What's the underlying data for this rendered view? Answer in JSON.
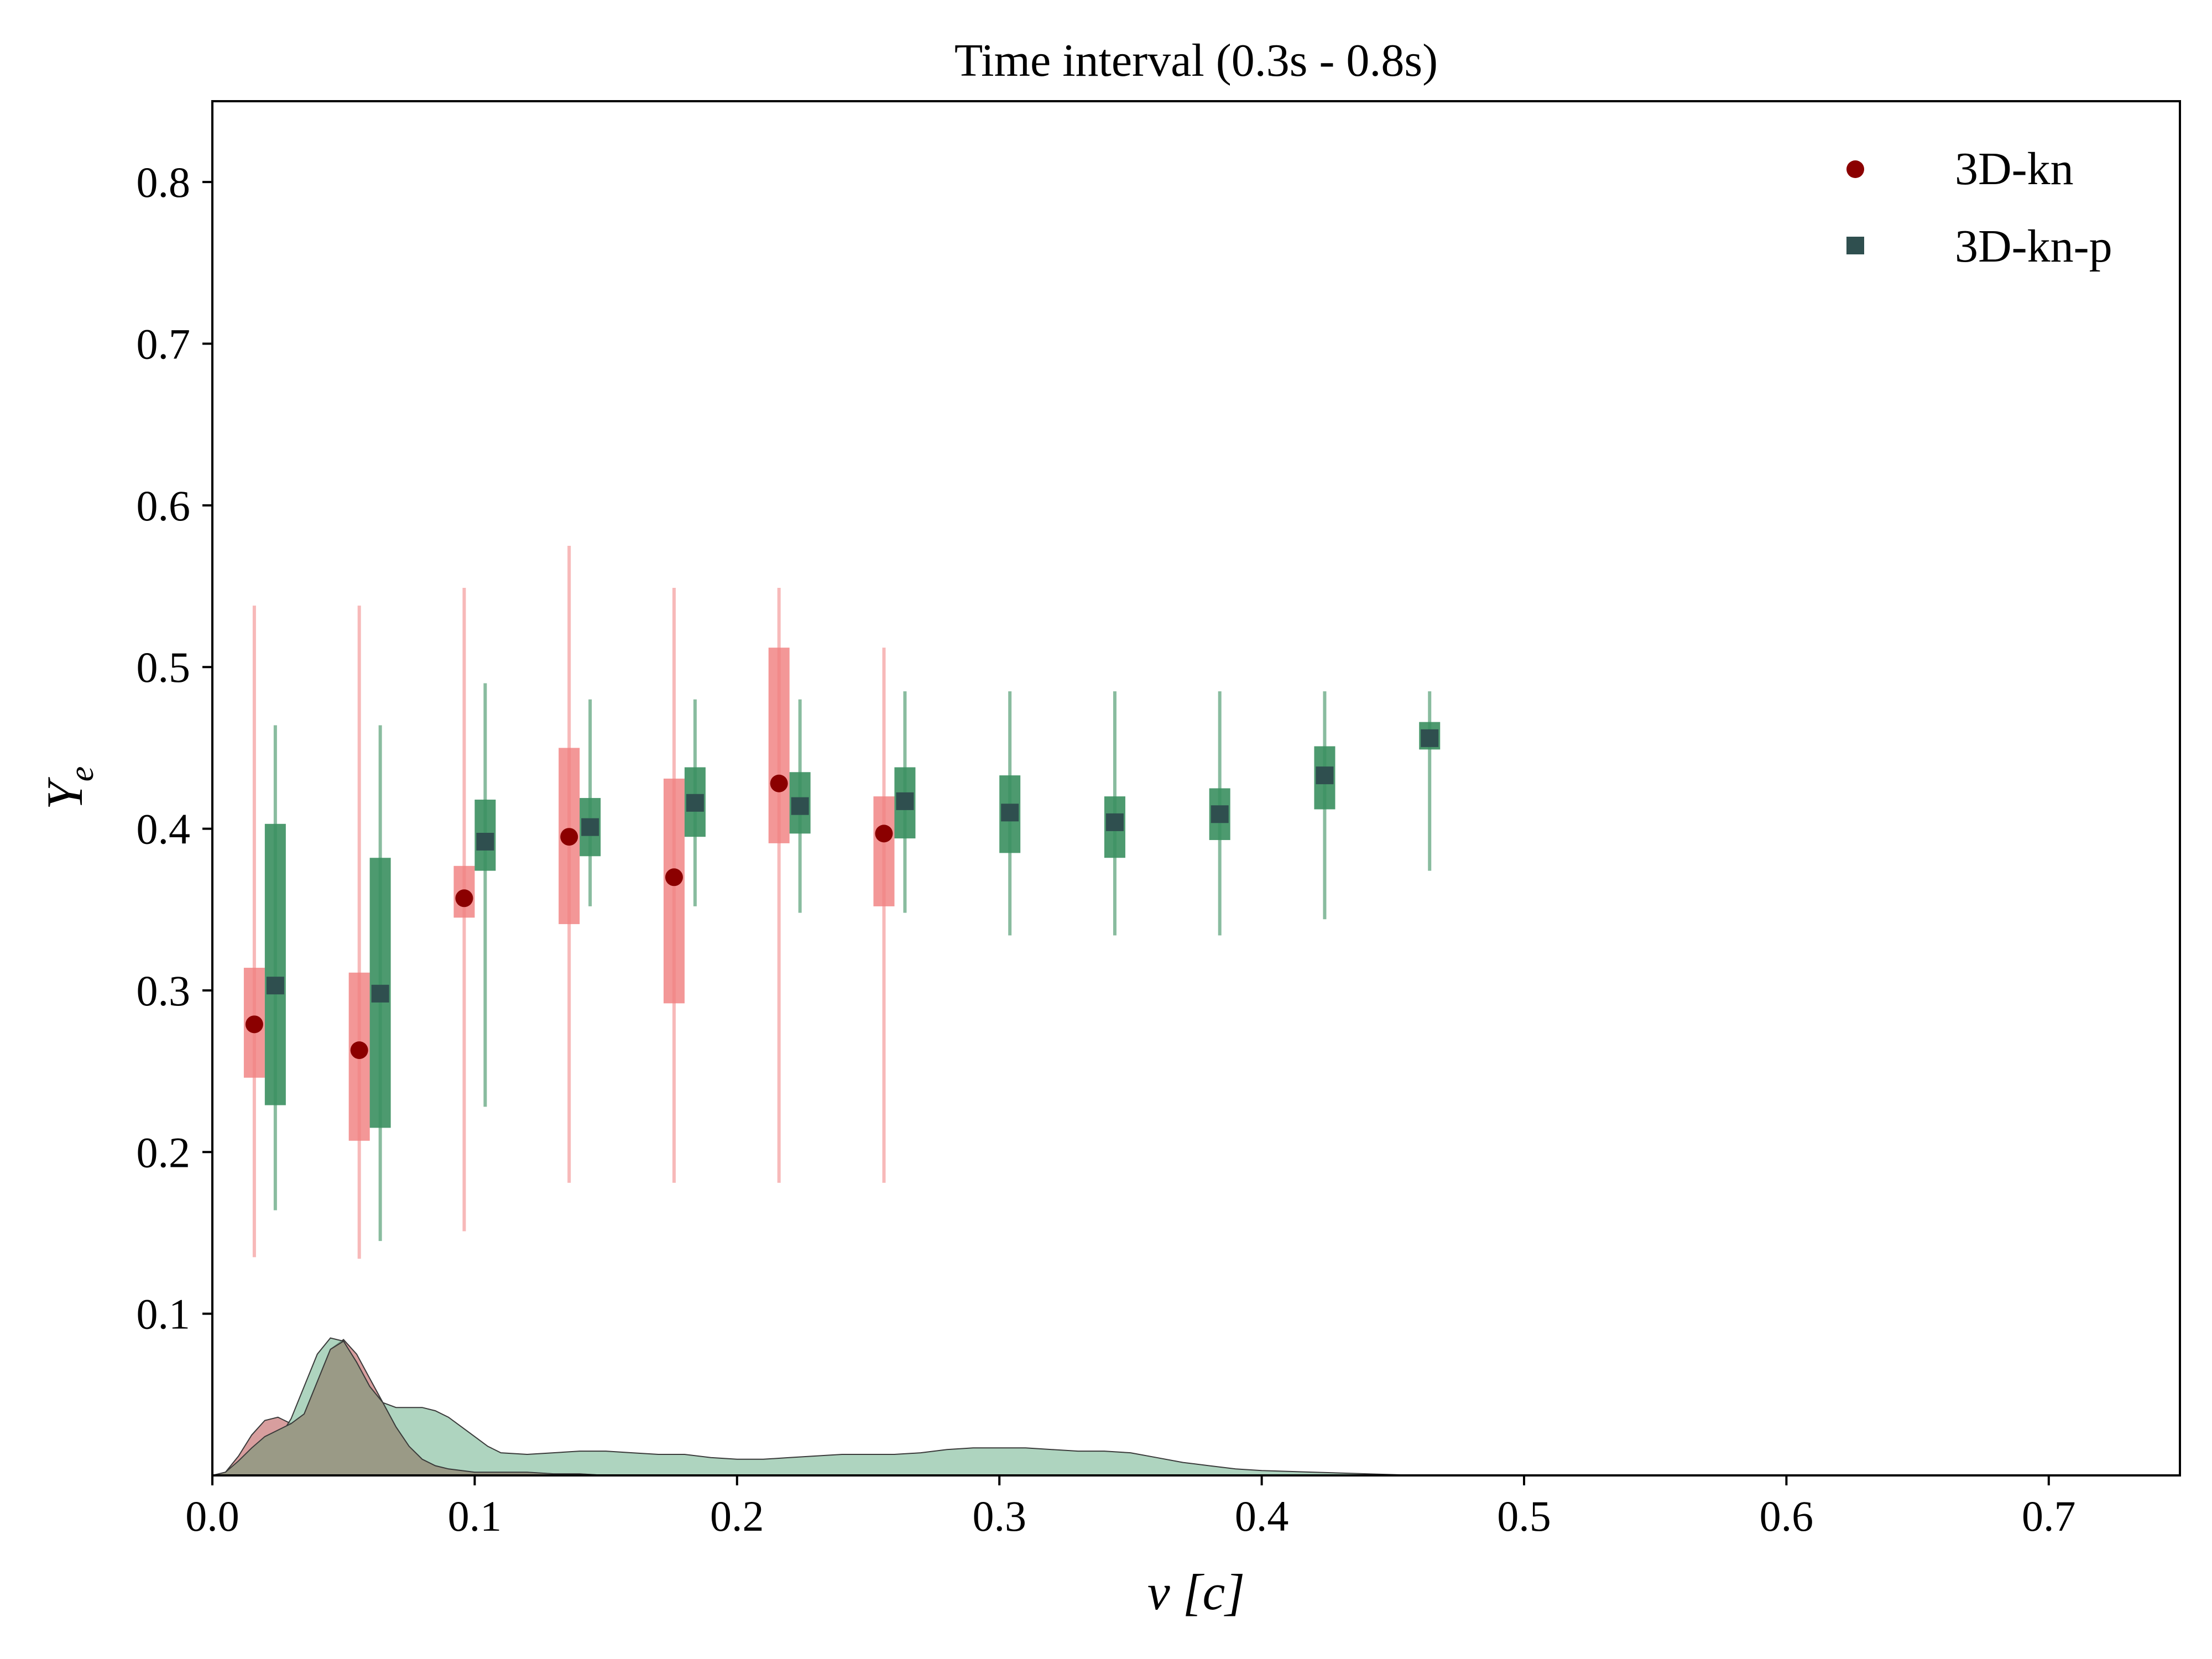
{
  "chart_data": {
    "type": "scatter",
    "title": "Time interval (0.3s - 0.8s)",
    "xlabel": "v [c]",
    "ylabel_main": "Y",
    "ylabel_sub": "e",
    "xlim": [
      0.0,
      0.75
    ],
    "ylim": [
      0.0,
      0.85
    ],
    "x_ticks": [
      "0.0",
      "0.1",
      "0.2",
      "0.3",
      "0.4",
      "0.5",
      "0.6",
      "0.7"
    ],
    "x_tick_values": [
      0.0,
      0.1,
      0.2,
      0.3,
      0.4,
      0.5,
      0.6,
      0.7
    ],
    "y_ticks": [
      "0.1",
      "0.2",
      "0.3",
      "0.4",
      "0.5",
      "0.6",
      "0.7",
      "0.8"
    ],
    "y_tick_values": [
      0.1,
      0.2,
      0.3,
      0.4,
      0.5,
      0.6,
      0.7,
      0.8
    ],
    "legend_position": "top-right",
    "grid": false,
    "series": [
      {
        "name": "3D-kn",
        "marker": "circle",
        "marker_color": "#8b0000",
        "box_color": "#f08080",
        "points": [
          {
            "x": 0.016,
            "y": 0.279,
            "q1": 0.246,
            "q3": 0.314,
            "min": 0.135,
            "max": 0.538
          },
          {
            "x": 0.056,
            "y": 0.263,
            "q1": 0.207,
            "q3": 0.311,
            "min": 0.134,
            "max": 0.538
          },
          {
            "x": 0.096,
            "y": 0.357,
            "q1": 0.345,
            "q3": 0.377,
            "min": 0.151,
            "max": 0.549
          },
          {
            "x": 0.136,
            "y": 0.395,
            "q1": 0.341,
            "q3": 0.45,
            "min": 0.181,
            "max": 0.575
          },
          {
            "x": 0.176,
            "y": 0.37,
            "q1": 0.292,
            "q3": 0.431,
            "min": 0.181,
            "max": 0.549
          },
          {
            "x": 0.216,
            "y": 0.428,
            "q1": 0.391,
            "q3": 0.512,
            "min": 0.181,
            "max": 0.549
          },
          {
            "x": 0.256,
            "y": 0.397,
            "q1": 0.352,
            "q3": 0.42,
            "min": 0.181,
            "max": 0.512
          }
        ]
      },
      {
        "name": "3D-kn-p",
        "marker": "square",
        "marker_color": "#2f4f4f",
        "box_color": "#3a8f5f",
        "points": [
          {
            "x": 0.024,
            "y": 0.303,
            "q1": 0.229,
            "q3": 0.403,
            "min": 0.164,
            "max": 0.464
          },
          {
            "x": 0.064,
            "y": 0.298,
            "q1": 0.215,
            "q3": 0.382,
            "min": 0.145,
            "max": 0.464
          },
          {
            "x": 0.104,
            "y": 0.392,
            "q1": 0.374,
            "q3": 0.418,
            "min": 0.228,
            "max": 0.49
          },
          {
            "x": 0.144,
            "y": 0.401,
            "q1": 0.383,
            "q3": 0.419,
            "min": 0.352,
            "max": 0.48
          },
          {
            "x": 0.184,
            "y": 0.416,
            "q1": 0.395,
            "q3": 0.438,
            "min": 0.352,
            "max": 0.48
          },
          {
            "x": 0.224,
            "y": 0.414,
            "q1": 0.397,
            "q3": 0.435,
            "min": 0.348,
            "max": 0.48
          },
          {
            "x": 0.264,
            "y": 0.417,
            "q1": 0.394,
            "q3": 0.438,
            "min": 0.348,
            "max": 0.485
          },
          {
            "x": 0.304,
            "y": 0.41,
            "q1": 0.385,
            "q3": 0.433,
            "min": 0.334,
            "max": 0.485
          },
          {
            "x": 0.344,
            "y": 0.404,
            "q1": 0.382,
            "q3": 0.42,
            "min": 0.334,
            "max": 0.485
          },
          {
            "x": 0.384,
            "y": 0.409,
            "q1": 0.393,
            "q3": 0.425,
            "min": 0.334,
            "max": 0.485
          },
          {
            "x": 0.424,
            "y": 0.433,
            "q1": 0.412,
            "q3": 0.451,
            "min": 0.344,
            "max": 0.485
          },
          {
            "x": 0.464,
            "y": 0.456,
            "q1": 0.449,
            "q3": 0.466,
            "min": 0.374,
            "max": 0.485
          }
        ]
      }
    ],
    "density": [
      {
        "name": "3D-kn",
        "color": "#c97878",
        "x": [
          0.0,
          0.005,
          0.01,
          0.015,
          0.02,
          0.025,
          0.03,
          0.035,
          0.04,
          0.045,
          0.05,
          0.055,
          0.06,
          0.065,
          0.07,
          0.075,
          0.08,
          0.085,
          0.09,
          0.095,
          0.1,
          0.11,
          0.12,
          0.13,
          0.14,
          0.15
        ],
        "y": [
          0.0,
          0.002,
          0.012,
          0.025,
          0.034,
          0.036,
          0.032,
          0.038,
          0.058,
          0.078,
          0.084,
          0.075,
          0.06,
          0.045,
          0.03,
          0.018,
          0.01,
          0.006,
          0.004,
          0.003,
          0.002,
          0.002,
          0.002,
          0.001,
          0.001,
          0.0
        ]
      },
      {
        "name": "3D-kn-p",
        "color": "#8fc4a6",
        "x": [
          0.0,
          0.01,
          0.02,
          0.025,
          0.03,
          0.035,
          0.04,
          0.045,
          0.05,
          0.055,
          0.06,
          0.065,
          0.07,
          0.075,
          0.08,
          0.085,
          0.09,
          0.095,
          0.1,
          0.105,
          0.11,
          0.12,
          0.13,
          0.14,
          0.15,
          0.16,
          0.17,
          0.18,
          0.19,
          0.2,
          0.21,
          0.22,
          0.23,
          0.24,
          0.25,
          0.26,
          0.27,
          0.28,
          0.29,
          0.3,
          0.31,
          0.32,
          0.33,
          0.34,
          0.35,
          0.36,
          0.37,
          0.38,
          0.39,
          0.4,
          0.42,
          0.44,
          0.46
        ],
        "y": [
          0.0,
          0.003,
          0.012,
          0.022,
          0.035,
          0.055,
          0.075,
          0.085,
          0.083,
          0.07,
          0.055,
          0.045,
          0.042,
          0.042,
          0.042,
          0.04,
          0.036,
          0.03,
          0.024,
          0.018,
          0.014,
          0.013,
          0.014,
          0.015,
          0.015,
          0.014,
          0.013,
          0.013,
          0.011,
          0.01,
          0.01,
          0.011,
          0.012,
          0.013,
          0.013,
          0.013,
          0.014,
          0.016,
          0.017,
          0.017,
          0.017,
          0.016,
          0.015,
          0.015,
          0.014,
          0.011,
          0.008,
          0.006,
          0.004,
          0.003,
          0.002,
          0.001,
          0.0
        ]
      },
      {
        "name": "overlap",
        "color": "#9a9a86",
        "x": [
          0.0,
          0.005,
          0.01,
          0.015,
          0.02,
          0.025,
          0.03,
          0.035,
          0.04,
          0.045,
          0.05,
          0.055,
          0.06,
          0.065,
          0.07,
          0.075,
          0.08,
          0.085,
          0.09,
          0.095,
          0.1,
          0.11,
          0.12,
          0.13,
          0.14,
          0.15
        ],
        "y": [
          0.0,
          0.002,
          0.009,
          0.017,
          0.024,
          0.028,
          0.032,
          0.038,
          0.058,
          0.078,
          0.083,
          0.07,
          0.055,
          0.045,
          0.03,
          0.018,
          0.01,
          0.006,
          0.004,
          0.003,
          0.002,
          0.002,
          0.002,
          0.001,
          0.001,
          0.0
        ]
      }
    ]
  }
}
